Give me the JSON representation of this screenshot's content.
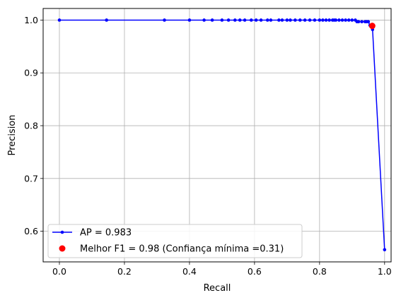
{
  "chart_data": {
    "type": "line",
    "title": "",
    "xlabel": "Recall",
    "ylabel": "Precision",
    "xlim": [
      -0.05,
      1.02
    ],
    "ylim": [
      0.542,
      1.022
    ],
    "xticks": [
      0.0,
      0.2,
      0.4,
      0.6,
      0.8,
      1.0
    ],
    "xtick_labels": [
      "0.0",
      "0.2",
      "0.4",
      "0.6",
      "0.8",
      "1.0"
    ],
    "yticks": [
      0.6,
      0.7,
      0.8,
      0.9,
      1.0
    ],
    "ytick_labels": [
      "0.6",
      "0.7",
      "0.8",
      "0.9",
      "1.0"
    ],
    "grid": true,
    "legend_position": "bottom-left",
    "series": [
      {
        "name": "AP = 0.983",
        "kind": "line-markers",
        "color": "#0000ff",
        "x": [
          0.0,
          0.145,
          0.323,
          0.4,
          0.445,
          0.47,
          0.5,
          0.52,
          0.54,
          0.555,
          0.57,
          0.59,
          0.605,
          0.62,
          0.64,
          0.65,
          0.675,
          0.685,
          0.7,
          0.71,
          0.725,
          0.74,
          0.755,
          0.77,
          0.785,
          0.8,
          0.81,
          0.82,
          0.83,
          0.84,
          0.845,
          0.85,
          0.86,
          0.87,
          0.88,
          0.89,
          0.9,
          0.91,
          0.915,
          0.92,
          0.93,
          0.94,
          0.945,
          0.95,
          0.955,
          0.96,
          0.963,
          1.0
        ],
        "y": [
          1.0,
          1.0,
          1.0,
          1.0,
          1.0,
          1.0,
          1.0,
          1.0,
          1.0,
          1.0,
          1.0,
          1.0,
          1.0,
          1.0,
          1.0,
          1.0,
          1.0,
          1.0,
          1.0,
          1.0,
          1.0,
          1.0,
          1.0,
          1.0,
          1.0,
          1.0,
          1.0,
          1.0,
          1.0,
          1.0,
          1.0,
          1.0,
          1.0,
          1.0,
          1.0,
          1.0,
          1.0,
          1.0,
          0.997,
          0.997,
          0.997,
          0.997,
          0.997,
          0.997,
          0.99,
          0.99,
          0.982,
          0.565
        ]
      },
      {
        "name": "Melhor F1 = 0.98 (Confiança mínima =0.31)",
        "kind": "scatter",
        "color": "#ff0000",
        "x": [
          0.962
        ],
        "y": [
          0.989
        ]
      }
    ]
  }
}
